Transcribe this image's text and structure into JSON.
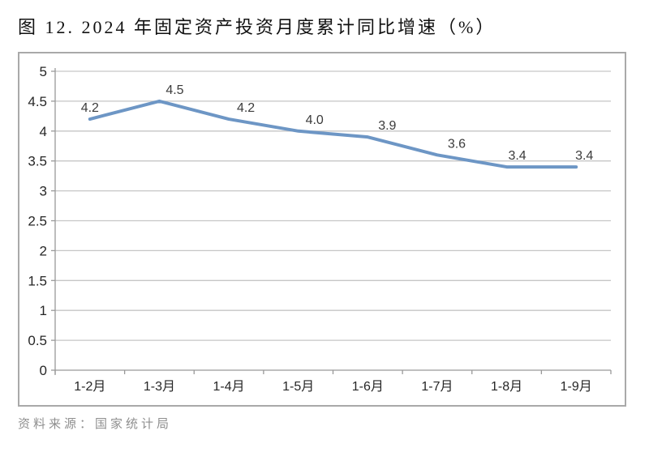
{
  "title": "图 12. 2024 年固定资产投资月度累计同比增速（%）",
  "source_note": "资料来源：国家统计局",
  "colors": {
    "line": "#6D96C5",
    "grid": "#C6C6C6",
    "axis": "#999999",
    "chart_border": "#A9A9A9",
    "data_label": "#3B3B3B",
    "tick_label": "#262626",
    "title_text": "#111111",
    "source_text": "#8F8F8F"
  },
  "chart_data": {
    "type": "line",
    "title": "图 12. 2024 年固定资产投资月度累计同比增速（%）",
    "categories": [
      "1-2月",
      "1-3月",
      "1-4月",
      "1-5月",
      "1-6月",
      "1-7月",
      "1-8月",
      "1-9月"
    ],
    "values": [
      4.2,
      4.5,
      4.2,
      4.0,
      3.9,
      3.6,
      3.4,
      3.4
    ],
    "data_labels": [
      "4.2",
      "4.5",
      "4.2",
      "4.0",
      "3.9",
      "3.6",
      "3.4",
      "3.4"
    ],
    "xlabel": "",
    "ylabel": "",
    "ylim": [
      0,
      5
    ],
    "ytick_step": 0.5,
    "ytick_labels": [
      "0",
      "0.5",
      "1",
      "1.5",
      "2",
      "2.5",
      "3",
      "3.5",
      "4",
      "4.5",
      "5"
    ],
    "grid": true,
    "legend_position": "none"
  }
}
